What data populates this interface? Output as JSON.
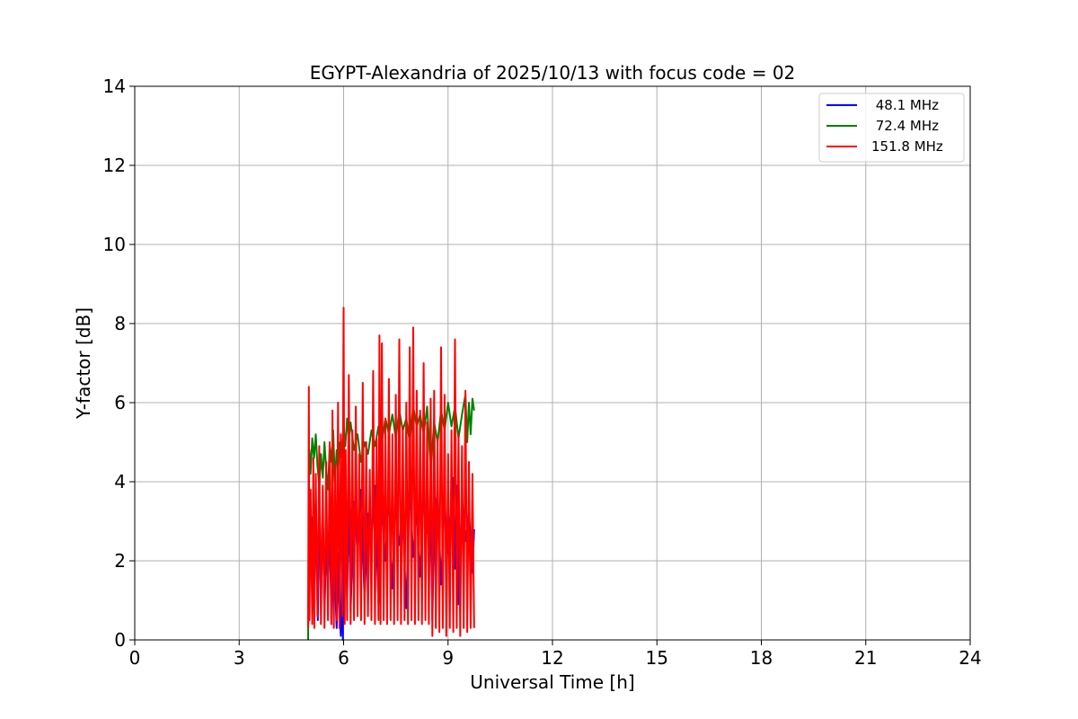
{
  "chart_data": {
    "type": "line",
    "title": "EGYPT-Alexandria of 2025/10/13 with focus code = 02",
    "xlabel": "Universal Time [h]",
    "ylabel": "Y-factor [dB]",
    "xlim": [
      0,
      24
    ],
    "ylim": [
      0,
      14
    ],
    "xticks": [
      0,
      3,
      6,
      9,
      12,
      15,
      18,
      21,
      24
    ],
    "yticks": [
      0,
      2,
      4,
      6,
      8,
      10,
      12,
      14
    ],
    "grid": true,
    "legend_position": "top-right",
    "series": [
      {
        "name": " 48.1 MHz",
        "color": "#0000ff",
        "x": [
          4.98,
          5.0,
          5.02,
          5.06,
          5.1,
          5.14,
          5.18,
          5.22,
          5.26,
          5.3,
          5.35,
          5.4,
          5.45,
          5.5,
          5.55,
          5.6,
          5.65,
          5.7,
          5.75,
          5.8,
          5.85,
          5.88,
          5.92,
          5.95,
          5.98,
          6.0,
          6.05,
          6.1,
          6.15,
          6.2,
          6.3,
          6.4,
          6.5,
          6.6,
          6.7,
          6.8,
          6.9,
          7.0,
          7.1,
          7.2,
          7.3,
          7.4,
          7.5,
          7.6,
          7.7,
          7.8,
          7.9,
          8.0,
          8.1,
          8.2,
          8.3,
          8.4,
          8.5,
          8.55,
          8.6,
          8.7,
          8.8,
          8.9,
          9.0,
          9.1,
          9.15,
          9.2,
          9.25,
          9.3,
          9.4,
          9.5,
          9.6,
          9.7,
          9.75
        ],
        "values": [
          0.3,
          1.2,
          3.6,
          2.1,
          3.1,
          0.8,
          3.4,
          2.3,
          0.5,
          2.9,
          1.8,
          3.2,
          0.6,
          2.5,
          1.2,
          3.1,
          0.4,
          2.7,
          1.5,
          0.3,
          2.2,
          0.8,
          0.1,
          1.6,
          0.0,
          2.4,
          3.3,
          1.1,
          3.6,
          0.7,
          3.5,
          2.2,
          3.8,
          1.0,
          3.2,
          2.6,
          3.9,
          0.9,
          3.4,
          2.0,
          3.7,
          1.3,
          3.5,
          2.4,
          3.0,
          0.8,
          3.9,
          2.1,
          3.3,
          1.6,
          3.6,
          2.7,
          3.1,
          0.5,
          2.9,
          3.8,
          1.4,
          3.5,
          2.2,
          3.4,
          4.1,
          1.8,
          3.9,
          0.9,
          3.6,
          2.5,
          3.3,
          1.7,
          2.8
        ]
      },
      {
        "name": " 72.4 MHz",
        "color": "#008000",
        "x": [
          4.98,
          5.0,
          5.02,
          5.05,
          5.1,
          5.15,
          5.2,
          5.25,
          5.3,
          5.35,
          5.4,
          5.45,
          5.5,
          5.55,
          5.6,
          5.65,
          5.7,
          5.75,
          5.8,
          5.85,
          5.9,
          5.95,
          6.0,
          6.05,
          6.1,
          6.15,
          6.2,
          6.3,
          6.4,
          6.5,
          6.6,
          6.7,
          6.8,
          6.9,
          7.0,
          7.1,
          7.2,
          7.3,
          7.4,
          7.5,
          7.6,
          7.7,
          7.8,
          7.9,
          8.0,
          8.1,
          8.2,
          8.3,
          8.4,
          8.5,
          8.6,
          8.7,
          8.8,
          8.9,
          9.0,
          9.1,
          9.2,
          9.3,
          9.4,
          9.5,
          9.55,
          9.6,
          9.65,
          9.7,
          9.75
        ],
        "values": [
          0.0,
          3.5,
          4.8,
          4.2,
          5.1,
          4.6,
          5.2,
          4.4,
          3.9,
          4.7,
          4.1,
          5.0,
          4.3,
          3.8,
          4.9,
          4.5,
          5.3,
          4.0,
          4.8,
          4.4,
          5.0,
          4.6,
          5.4,
          4.9,
          5.6,
          5.1,
          5.5,
          4.8,
          5.2,
          4.5,
          5.0,
          4.7,
          5.3,
          4.9,
          5.4,
          5.0,
          5.6,
          5.2,
          5.7,
          5.1,
          5.8,
          5.3,
          5.6,
          5.0,
          5.9,
          5.4,
          5.7,
          5.2,
          5.9,
          4.3,
          5.5,
          5.0,
          5.8,
          5.3,
          6.0,
          5.4,
          5.9,
          5.1,
          5.7,
          6.2,
          5.0,
          6.0,
          5.2,
          6.1,
          5.8
        ]
      },
      {
        "name": "151.8 MHz",
        "color": "#ff0000",
        "x": [
          4.98,
          5.0,
          5.02,
          5.05,
          5.1,
          5.13,
          5.16,
          5.2,
          5.25,
          5.3,
          5.35,
          5.4,
          5.45,
          5.5,
          5.55,
          5.6,
          5.65,
          5.68,
          5.72,
          5.76,
          5.8,
          5.84,
          5.88,
          5.92,
          5.96,
          6.0,
          6.03,
          6.06,
          6.1,
          6.15,
          6.2,
          6.25,
          6.3,
          6.35,
          6.4,
          6.45,
          6.5,
          6.55,
          6.6,
          6.65,
          6.7,
          6.75,
          6.8,
          6.85,
          6.9,
          6.95,
          7.0,
          7.03,
          7.06,
          7.1,
          7.15,
          7.2,
          7.25,
          7.3,
          7.35,
          7.4,
          7.45,
          7.5,
          7.55,
          7.6,
          7.65,
          7.7,
          7.75,
          7.8,
          7.85,
          7.9,
          7.95,
          8.0,
          8.05,
          8.1,
          8.15,
          8.2,
          8.25,
          8.3,
          8.35,
          8.4,
          8.45,
          8.5,
          8.55,
          8.6,
          8.65,
          8.7,
          8.75,
          8.8,
          8.85,
          8.9,
          8.95,
          9.0,
          9.05,
          9.1,
          9.15,
          9.2,
          9.25,
          9.3,
          9.35,
          9.4,
          9.45,
          9.5,
          9.55,
          9.6,
          9.65,
          9.7,
          9.75
        ],
        "values": [
          0.3,
          6.4,
          0.5,
          3.8,
          0.4,
          4.6,
          0.3,
          4.2,
          0.6,
          4.9,
          0.4,
          3.9,
          0.3,
          4.5,
          0.5,
          5.0,
          0.4,
          5.8,
          0.3,
          4.4,
          0.5,
          6.0,
          0.3,
          5.2,
          0.6,
          8.4,
          0.4,
          4.8,
          0.5,
          6.7,
          0.4,
          5.3,
          0.5,
          5.9,
          0.6,
          4.7,
          0.5,
          6.5,
          0.4,
          5.0,
          0.6,
          4.3,
          0.5,
          6.8,
          0.4,
          5.1,
          0.5,
          7.7,
          0.4,
          7.5,
          0.5,
          5.6,
          0.4,
          6.6,
          0.5,
          5.2,
          0.4,
          6.2,
          0.5,
          7.6,
          0.4,
          5.4,
          0.5,
          6.0,
          0.4,
          7.4,
          0.5,
          7.9,
          0.4,
          6.3,
          0.5,
          5.8,
          0.4,
          7.0,
          0.5,
          5.5,
          0.4,
          6.1,
          0.1,
          6.3,
          0.3,
          5.1,
          0.2,
          7.4,
          0.3,
          6.2,
          0.1,
          4.7,
          0.3,
          5.3,
          0.2,
          7.6,
          0.3,
          5.2,
          0.1,
          4.9,
          0.3,
          6.3,
          0.2,
          4.5,
          0.3,
          4.2,
          0.3
        ]
      }
    ]
  }
}
